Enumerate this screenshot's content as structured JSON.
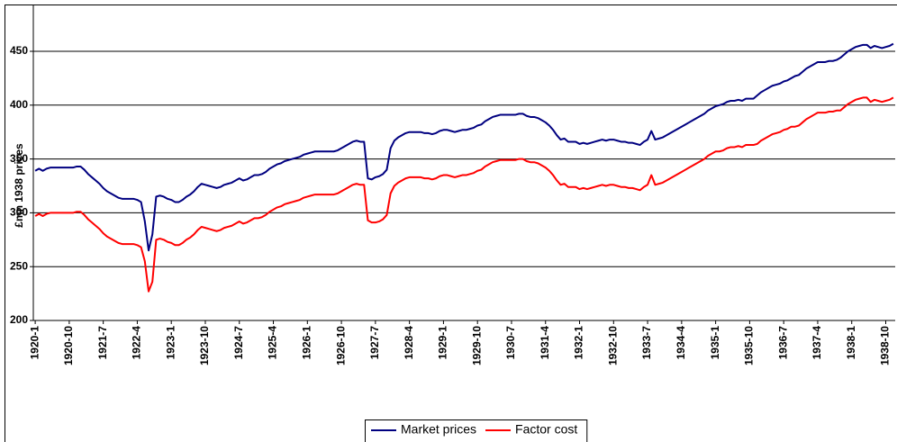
{
  "chart_data": {
    "type": "line",
    "y_label": "£mn 1938 prices",
    "ylim": [
      200,
      500
    ],
    "yticks": [
      200,
      250,
      300,
      350,
      400,
      450
    ],
    "grid": true,
    "legend": "bottom",
    "categories": [
      "1920-1",
      null,
      null,
      null,
      null,
      null,
      null,
      null,
      null,
      "1920-10",
      null,
      null,
      null,
      null,
      null,
      null,
      null,
      null,
      "1921-7",
      null,
      null,
      null,
      null,
      null,
      null,
      null,
      null,
      "1922-4",
      null,
      null,
      null,
      null,
      null,
      null,
      null,
      null,
      "1923-1",
      null,
      null,
      null,
      null,
      null,
      null,
      null,
      null,
      "1923-10",
      null,
      null,
      null,
      null,
      null,
      null,
      null,
      null,
      "1924-7",
      null,
      null,
      null,
      null,
      null,
      null,
      null,
      null,
      "1925-4",
      null,
      null,
      null,
      null,
      null,
      null,
      null,
      null,
      "1926-1",
      null,
      null,
      null,
      null,
      null,
      null,
      null,
      null,
      "1926-10",
      null,
      null,
      null,
      null,
      null,
      null,
      null,
      null,
      "1927-7",
      null,
      null,
      null,
      null,
      null,
      null,
      null,
      null,
      "1928-4",
      null,
      null,
      null,
      null,
      null,
      null,
      null,
      null,
      "1929-1",
      null,
      null,
      null,
      null,
      null,
      null,
      null,
      null,
      "1929-10",
      null,
      null,
      null,
      null,
      null,
      null,
      null,
      null,
      "1930-7",
      null,
      null,
      null,
      null,
      null,
      null,
      null,
      null,
      "1931-4",
      null,
      null,
      null,
      null,
      null,
      null,
      null,
      null,
      "1932-1",
      null,
      null,
      null,
      null,
      null,
      null,
      null,
      null,
      "1932-10",
      null,
      null,
      null,
      null,
      null,
      null,
      null,
      null,
      "1933-7",
      null,
      null,
      null,
      null,
      null,
      null,
      null,
      null,
      "1934-4",
      null,
      null,
      null,
      null,
      null,
      null,
      null,
      null,
      "1935-1",
      null,
      null,
      null,
      null,
      null,
      null,
      null,
      null,
      "1935-10",
      null,
      null,
      null,
      null,
      null,
      null,
      null,
      null,
      "1936-7",
      null,
      null,
      null,
      null,
      null,
      null,
      null,
      null,
      "1937-4",
      null,
      null,
      null,
      null,
      null,
      null,
      null,
      null,
      "1938-1",
      null,
      null,
      null,
      null,
      null,
      null,
      null,
      null,
      "1938-10",
      null,
      null
    ],
    "series": [
      {
        "name": "Market prices",
        "color": "#000080",
        "values": [
          339,
          341,
          339,
          341,
          342,
          342,
          342,
          342,
          342,
          342,
          342,
          343,
          343,
          340,
          336,
          333,
          330,
          327,
          323,
          320,
          318,
          316,
          314,
          313,
          313,
          313,
          313,
          312,
          310,
          292,
          265,
          280,
          315,
          316,
          315,
          313,
          312,
          310,
          310,
          312,
          315,
          317,
          320,
          324,
          327,
          326,
          325,
          324,
          323,
          324,
          326,
          327,
          328,
          330,
          332,
          330,
          331,
          333,
          335,
          335,
          336,
          338,
          341,
          343,
          345,
          346,
          348,
          349,
          350,
          351,
          352,
          354,
          355,
          356,
          357,
          357,
          357,
          357,
          357,
          357,
          358,
          360,
          362,
          364,
          366,
          367,
          366,
          366,
          332,
          331,
          333,
          334,
          336,
          340,
          360,
          367,
          370,
          372,
          374,
          375,
          375,
          375,
          375,
          374,
          374,
          373,
          374,
          376,
          377,
          377,
          376,
          375,
          376,
          377,
          377,
          378,
          379,
          381,
          382,
          385,
          387,
          389,
          390,
          391,
          391,
          391,
          391,
          391,
          392,
          392,
          390,
          389,
          389,
          388,
          386,
          384,
          381,
          377,
          372,
          368,
          369,
          366,
          366,
          366,
          364,
          365,
          364,
          365,
          366,
          367,
          368,
          367,
          368,
          368,
          367,
          366,
          366,
          365,
          365,
          364,
          363,
          366,
          368,
          376,
          368,
          369,
          370,
          372,
          374,
          376,
          378,
          380,
          382,
          384,
          386,
          388,
          390,
          392,
          395,
          397,
          399,
          400,
          401,
          403,
          404,
          404,
          405,
          404,
          406,
          406,
          406,
          409,
          412,
          414,
          416,
          418,
          419,
          420,
          422,
          423,
          425,
          427,
          428,
          431,
          434,
          436,
          438,
          440,
          440,
          440,
          441,
          441,
          442,
          444,
          447,
          450,
          452,
          454,
          455,
          456,
          456,
          453,
          455,
          454,
          453,
          454,
          455,
          457
        ]
      },
      {
        "name": "Factor cost",
        "color": "#ff0000",
        "values": [
          297,
          299,
          297,
          299,
          300,
          300,
          300,
          300,
          300,
          300,
          300,
          301,
          301,
          298,
          294,
          291,
          288,
          285,
          281,
          278,
          276,
          274,
          272,
          271,
          271,
          271,
          271,
          270,
          268,
          255,
          227,
          236,
          275,
          276,
          275,
          273,
          272,
          270,
          270,
          272,
          275,
          277,
          280,
          284,
          287,
          286,
          285,
          284,
          283,
          284,
          286,
          287,
          288,
          290,
          292,
          290,
          291,
          293,
          295,
          295,
          296,
          298,
          301,
          303,
          305,
          306,
          308,
          309,
          310,
          311,
          312,
          314,
          315,
          316,
          317,
          317,
          317,
          317,
          317,
          317,
          318,
          320,
          322,
          324,
          326,
          327,
          326,
          326,
          293,
          291,
          291,
          292,
          294,
          298,
          318,
          325,
          328,
          330,
          332,
          333,
          333,
          333,
          333,
          332,
          332,
          331,
          332,
          334,
          335,
          335,
          334,
          333,
          334,
          335,
          335,
          336,
          337,
          339,
          340,
          343,
          345,
          347,
          348,
          349,
          349,
          349,
          349,
          349,
          350,
          350,
          348,
          347,
          347,
          346,
          344,
          342,
          339,
          335,
          330,
          326,
          327,
          324,
          324,
          324,
          322,
          323,
          322,
          323,
          324,
          325,
          326,
          325,
          326,
          326,
          325,
          324,
          324,
          323,
          323,
          322,
          321,
          324,
          326,
          335,
          326,
          327,
          328,
          330,
          332,
          334,
          336,
          338,
          340,
          342,
          344,
          346,
          348,
          350,
          353,
          355,
          357,
          357,
          358,
          360,
          361,
          361,
          362,
          361,
          363,
          363,
          363,
          364,
          367,
          369,
          371,
          373,
          374,
          375,
          377,
          378,
          380,
          380,
          381,
          384,
          387,
          389,
          391,
          393,
          393,
          393,
          394,
          394,
          395,
          395,
          398,
          401,
          403,
          405,
          406,
          407,
          407,
          403,
          405,
          404,
          403,
          404,
          405,
          407
        ]
      }
    ]
  }
}
